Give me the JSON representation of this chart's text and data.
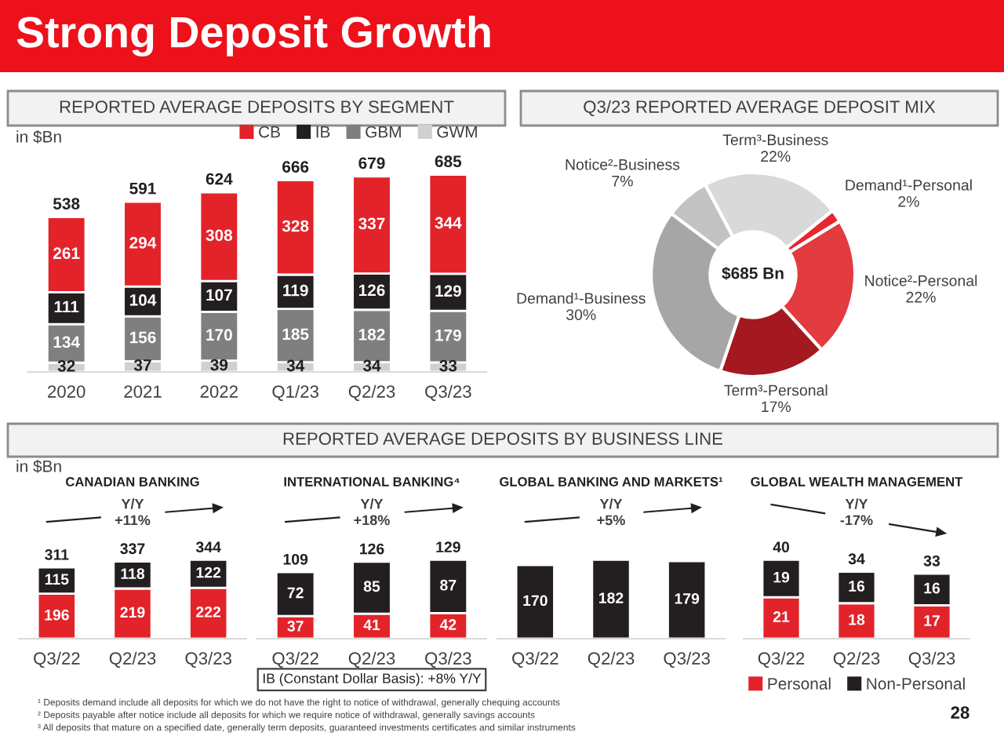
{
  "chart_data": [
    {
      "type": "other",
      "title": "Strong Deposit Growth",
      "annotations": [
        "¹ Deposits demand include all deposits for which we do not have the right to notice of withdrawal, generally chequing accounts",
        "² Deposits payable after notice include all deposits for which we require notice of withdrawal, generally savings accounts",
        "³ All deposits that mature on a specified date, generally term deposits, guaranteed investments certificates and similar instruments",
        "28"
      ]
    },
    {
      "type": "bar",
      "title": "REPORTED AVERAGE DEPOSITS BY SEGMENT",
      "ylabel": "in $Bn",
      "categories": [
        "2020",
        "2021",
        "2022",
        "Q1/23",
        "Q2/23",
        "Q3/23"
      ],
      "stacked": true,
      "series": [
        {
          "name": "GWM",
          "color": "#d0d0d0",
          "values": [
            32,
            37,
            39,
            34,
            34,
            33
          ]
        },
        {
          "name": "GBM",
          "color": "#7f7f7f",
          "values": [
            134,
            156,
            170,
            185,
            182,
            179
          ]
        },
        {
          "name": "IB",
          "color": "#231f20",
          "values": [
            111,
            104,
            107,
            119,
            126,
            129
          ]
        },
        {
          "name": "CB",
          "color": "#e2232a",
          "values": [
            261,
            294,
            308,
            328,
            337,
            344
          ]
        }
      ],
      "data_labels": true,
      "totals": [
        "538",
        "591",
        "624",
        "666",
        "679",
        "685"
      ],
      "legend": "top right",
      "tick_labels": "x"
    },
    {
      "type": "donut",
      "title": "Q3/23 REPORTED AVERAGE DEPOSIT MIX",
      "categories": [
        "Term³-Business",
        "Demand¹-Personal",
        "Notice²-Personal",
        "Term³-Personal",
        "Demand¹-Business",
        "Notice²-Business"
      ],
      "values": [
        22,
        2,
        22,
        17,
        30,
        7
      ],
      "colors": [
        "#d9d9d9",
        "#e8262d",
        "#e23b40",
        "#a3191f",
        "#a6a6a6",
        "#c2c2c2"
      ],
      "value_labels": [
        "22%",
        "2%",
        "22%",
        "17%",
        "30%",
        "7%"
      ],
      "annotations": [
        "$685 Bn"
      ]
    },
    {
      "type": "other",
      "title": "REPORTED AVERAGE DEPOSITS BY BUSINESS LINE"
    },
    {
      "type": "bar",
      "title": "CANADIAN BANKING",
      "ylabel": "in $Bn",
      "categories": [
        "Q3/22",
        "Q2/23",
        "Q3/23"
      ],
      "stacked": true,
      "series": [
        {
          "color": "#e2232a",
          "values": [
            196,
            219,
            222
          ]
        },
        {
          "color": "#231f20",
          "values": [
            115,
            118,
            122
          ]
        }
      ],
      "data_labels": true,
      "totals": [
        "311",
        "337",
        "344"
      ],
      "tick_labels": "x",
      "annotations": [
        "Y/Y\n+11%"
      ]
    },
    {
      "type": "bar",
      "title": "INTERNATIONAL BANKING⁴",
      "categories": [
        "Q3/22",
        "Q2/23",
        "Q3/23"
      ],
      "stacked": true,
      "series": [
        {
          "color": "#e2232a",
          "values": [
            37,
            41,
            42
          ]
        },
        {
          "color": "#231f20",
          "values": [
            72,
            85,
            87
          ]
        }
      ],
      "data_labels": true,
      "totals": [
        "109",
        "126",
        "129"
      ],
      "tick_labels": "x",
      "annotations": [
        "Y/Y\n+18%",
        "IB (Constant Dollar Basis): +8% Y/Y"
      ]
    },
    {
      "type": "bar",
      "title": "GLOBAL BANKING AND MARKETS¹",
      "categories": [
        "Q3/22",
        "Q2/23",
        "Q3/23"
      ],
      "series": [
        {
          "color": "#231f20",
          "values": [
            170,
            182,
            179
          ]
        }
      ],
      "data_labels": true,
      "tick_labels": "x",
      "annotations": [
        "Y/Y\n+5%"
      ]
    },
    {
      "type": "bar",
      "title": "GLOBAL WEALTH MANAGEMENT",
      "categories": [
        "Q3/22",
        "Q2/23",
        "Q3/23"
      ],
      "stacked": true,
      "series": [
        {
          "name": "Personal",
          "color": "#e2232a",
          "values": [
            21,
            18,
            17
          ]
        },
        {
          "name": "Non-Personal",
          "color": "#231f20",
          "values": [
            19,
            16,
            16
          ]
        }
      ],
      "data_labels": true,
      "totals": [
        "40",
        "34",
        "33"
      ],
      "tick_labels": "x",
      "legend": "bottom",
      "annotations": [
        "Y/Y\n-17%"
      ]
    }
  ]
}
